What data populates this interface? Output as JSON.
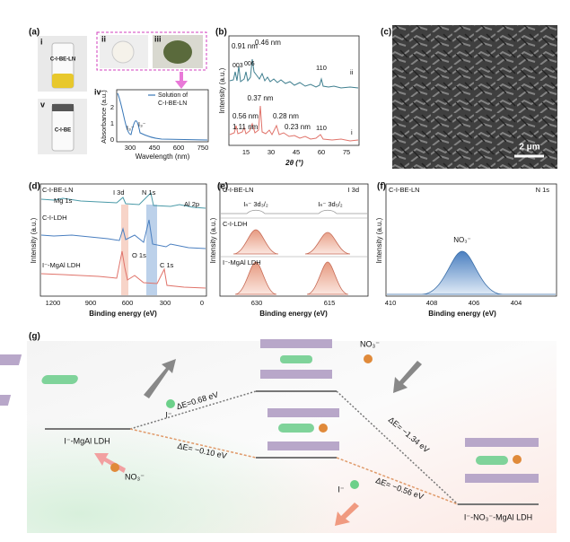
{
  "a": {
    "label": "(a)",
    "tags": [
      "i",
      "ii",
      "iii",
      "iv",
      "v"
    ],
    "vials": [
      "C-I-BE-LN",
      "C-I-BE"
    ],
    "iv": {
      "ylabel": "Absorbance (a.u.)",
      "xlabel": "Wavelength (nm)",
      "yticks": [
        0,
        1,
        2
      ],
      "xticks": [
        300,
        450,
        600,
        750
      ],
      "legend": [
        "Solution of",
        "C-I-BE-LN"
      ],
      "peaks": [
        "I₃⁻",
        "I₃⁻"
      ]
    }
  },
  "b": {
    "label": "(b)",
    "ylabel": "Intensity (a.u.)",
    "xlabel": "2θ (°)",
    "xticks": [
      15,
      30,
      45,
      60,
      75
    ],
    "top": [
      "0.91 nm",
      "0.46 nm",
      "003",
      "006",
      "110",
      "ii"
    ],
    "bottom": [
      "0.37 nm",
      "0.56 nm",
      "1.11 nm",
      "0.28 nm",
      "0.23 nm",
      "110",
      "i"
    ]
  },
  "c": {
    "label": "(c)",
    "scale": "2 μm"
  },
  "d": {
    "label": "(d)",
    "ylabel": "Intensity (a.u.)",
    "xlabel": "Binding energy (eV)",
    "xticks": [
      1200,
      900,
      600,
      300,
      0
    ],
    "samples": [
      "C-I-BE-LN",
      "C-I-LDH",
      "I⁻-MgAl LDH"
    ],
    "peaks": [
      "Mg 1s",
      "I 3d",
      "N 1s",
      "Al 2p",
      "O 1s",
      "C 1s"
    ]
  },
  "e": {
    "label": "(e)",
    "ylabel": "Intensity (a.u.)",
    "xlabel": "Binding energy (eV)",
    "xticks": [
      630,
      615
    ],
    "title": "I 3d",
    "samples": [
      "C-I-BE-LN",
      "C-I-LDH",
      "I⁻-MgAl LDH"
    ],
    "peaks": [
      "Iₙ⁻ 3d₃/₂",
      "Iₙ⁻ 3d₅/₂"
    ]
  },
  "f": {
    "label": "(f)",
    "ylabel": "Intensity (a.u.)",
    "xlabel": "Binding energy (eV)",
    "xticks": [
      410,
      408,
      406,
      404
    ],
    "title": "N 1s",
    "sample": "C-I-BE-LN",
    "peak": "NO₃⁻"
  },
  "g": {
    "label": "(g)",
    "states": [
      "I⁻-MgAl LDH",
      "I⁻-NO₃⁻-MgAl LDH"
    ],
    "ions": [
      "I⁻",
      "NO₃⁻",
      "NO₃⁻",
      "I⁻"
    ],
    "energies": [
      "ΔE=0.68 eV",
      "ΔE= −0.10 eV",
      "ΔE= −1.34 eV",
      "ΔE= −0.56 eV"
    ]
  }
}
